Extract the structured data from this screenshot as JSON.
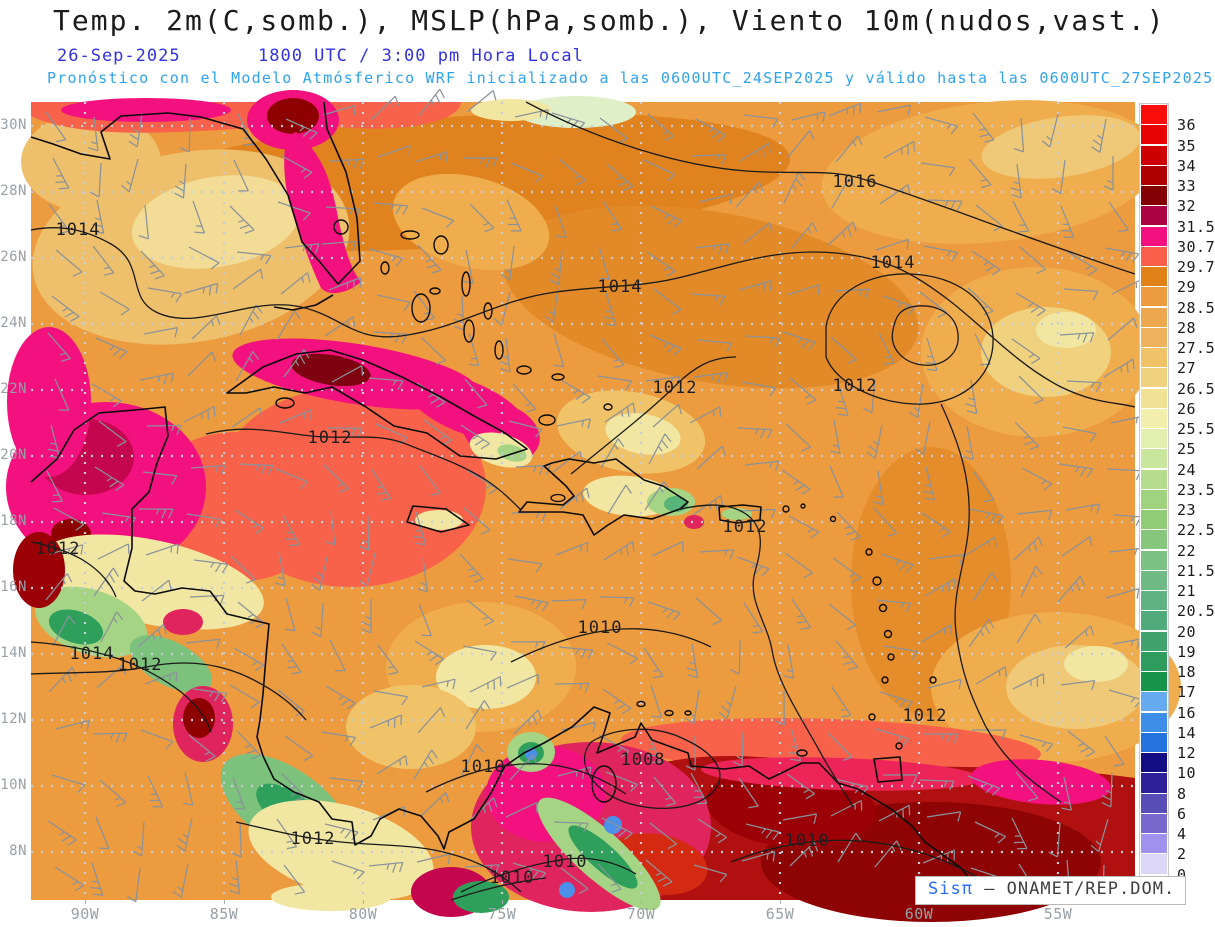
{
  "header": {
    "title": "Temp. 2m(C,somb.), MSLP(hPa,somb.), Viento 10m(nudos,vast.)",
    "date": "26-Sep-2025",
    "time": "1800 UTC / 3:00 pm Hora Local",
    "forecast_note": "Pronóstico con el Modelo Atmósferico WRF inicializado a las 0600UTC_24SEP2025 y válido hasta las  0600UTC_27SEP2025"
  },
  "watermark": {
    "brand": "Sisπ",
    "org": " – ONAMET/REP.DOM."
  },
  "chart_data": {
    "type": "heatmap",
    "title": "Temp. 2m(C,somb.), MSLP(hPa,somb.), Viento 10m(nudos,vast.)",
    "region": "Gulf of Mexico / Caribbean / Tropical Atlantic",
    "valid": "26-Sep-2025 1800 UTC / 3:00 pm Hora Local",
    "model_run": "WRF inicializado 0600UTC_24SEP2025, válido hasta 0600UTC_27SEP2025",
    "x_ticks": [
      "90W",
      "85W",
      "80W",
      "75W",
      "70W",
      "65W",
      "60W",
      "55W"
    ],
    "y_ticks": [
      "30N",
      "28N",
      "26N",
      "24N",
      "22N",
      "20N",
      "18N",
      "16N",
      "14N",
      "12N",
      "10N",
      "8N"
    ],
    "colorbar_units": "C",
    "colorbar_tick_labels": [
      "36",
      "35",
      "34",
      "33",
      "32",
      "31.5",
      "30.7",
      "29.7",
      "29",
      "28.5",
      "28",
      "27.5",
      "27",
      "26.5",
      "26",
      "25.5",
      "25",
      "24",
      "23.5",
      "23",
      "22.5",
      "22",
      "21.5",
      "21",
      "20.5",
      "20",
      "19",
      "18",
      "17",
      "16",
      "14",
      "12",
      "10",
      "8",
      "6",
      "4",
      "2",
      "0"
    ],
    "colorbar_colors": [
      "#FB0D09",
      "#E80303",
      "#CE0000",
      "#AE0000",
      "#830005",
      "#AB0341",
      "#F2117E",
      "#FA5F4C",
      "#E08217",
      "#EC9B3F",
      "#ECA74F",
      "#EDB25B",
      "#F0C368",
      "#F0D27E",
      "#F1E194",
      "#F2EFAC",
      "#E2EFAE",
      "#CAE69C",
      "#B4DC8C",
      "#A0D37F",
      "#90CC74",
      "#86C77D",
      "#7CC284",
      "#6FBA85",
      "#60B283",
      "#50AA7C",
      "#41A26E",
      "#2F9C5D",
      "#17934A",
      "#66AAF0",
      "#3E8EE8",
      "#2472DC",
      "#140E84",
      "#2E2096",
      "#584CB6",
      "#7868CE",
      "#A091EE",
      "#DCD6F8",
      "#FFFFFF"
    ],
    "isobar_values_hpa": [
      1008,
      1010,
      1012,
      1014,
      1016
    ],
    "isobar_labels": [
      {
        "value": "1016",
        "x": 824,
        "y": 79
      },
      {
        "value": "1014",
        "x": 47,
        "y": 127
      },
      {
        "value": "1014",
        "x": 589,
        "y": 184
      },
      {
        "value": "1014",
        "x": 862,
        "y": 160
      },
      {
        "value": "1012",
        "x": 299,
        "y": 335
      },
      {
        "value": "1012",
        "x": 644,
        "y": 285
      },
      {
        "value": "1012",
        "x": 824,
        "y": 283
      },
      {
        "value": "1012",
        "x": 714,
        "y": 424
      },
      {
        "value": "1012",
        "x": 27,
        "y": 446
      },
      {
        "value": "1014",
        "x": 61,
        "y": 551
      },
      {
        "value": "1012",
        "x": 109,
        "y": 562
      },
      {
        "value": "1010",
        "x": 569,
        "y": 525
      },
      {
        "value": "1012",
        "x": 894,
        "y": 613
      },
      {
        "value": "1010",
        "x": 452,
        "y": 664
      },
      {
        "value": "1008",
        "x": 612,
        "y": 657
      },
      {
        "value": "1012",
        "x": 282,
        "y": 736
      },
      {
        "value": "1010",
        "x": 776,
        "y": 738
      },
      {
        "value": "1010",
        "x": 534,
        "y": 759
      },
      {
        "value": "1010",
        "x": 481,
        "y": 775
      }
    ]
  }
}
